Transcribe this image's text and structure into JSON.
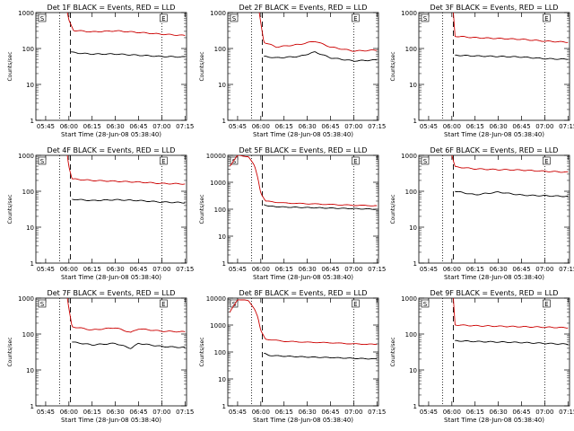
{
  "chart_data": [
    {
      "type": "line",
      "title": "Det 1F BLACK = Events, RED = LLD",
      "xlabel": "Start Time (28-Jun-08 05:38:40)",
      "ylabel": "Counts/sec",
      "xlim": [
        "05:38:40",
        "07:16:00"
      ],
      "ylim": [
        1,
        1000
      ],
      "yscale": "log",
      "x_ticks": [
        "05:45",
        "06:00",
        "06:15",
        "06:30",
        "06:45",
        "07:00",
        "07:15"
      ],
      "y_ticks": [
        "1",
        "10",
        "100",
        "1000"
      ],
      "markers": [
        "S",
        "E"
      ],
      "dotted_lines_at": [
        "05:54",
        "07:00"
      ],
      "dashed_line_at": "06:01",
      "series": [
        {
          "color": "#000000",
          "x": [
            "06:01",
            "06:05",
            "06:15",
            "06:30",
            "06:45",
            "07:00",
            "07:15"
          ],
          "values": [
            80,
            75,
            70,
            70,
            65,
            60,
            58
          ]
        },
        {
          "color": "#cc0000",
          "x": [
            "05:59",
            "06:00",
            "06:03",
            "06:15",
            "06:30",
            "06:45",
            "07:00",
            "07:15"
          ],
          "values": [
            1000,
            600,
            320,
            290,
            310,
            280,
            250,
            230
          ]
        }
      ]
    },
    {
      "type": "line",
      "title": "Det 2F BLACK = Events, RED = LLD",
      "xlabel": "Start Time (28-Jun-08 05:38:40)",
      "ylabel": "Counts/sec",
      "xlim": [
        "05:38:40",
        "07:16:00"
      ],
      "ylim": [
        1,
        1000
      ],
      "yscale": "log",
      "x_ticks": [
        "05:45",
        "06:00",
        "06:15",
        "06:30",
        "06:45",
        "07:00",
        "07:15"
      ],
      "y_ticks": [
        "1",
        "10",
        "100",
        "1000"
      ],
      "markers": [
        "S",
        "E"
      ],
      "dotted_lines_at": [
        "05:54",
        "07:00"
      ],
      "dashed_line_at": "06:01",
      "series": [
        {
          "color": "#000000",
          "x": [
            "06:02",
            "06:10",
            "06:25",
            "06:35",
            "06:45",
            "07:00",
            "07:15"
          ],
          "values": [
            60,
            55,
            60,
            80,
            55,
            45,
            48
          ]
        },
        {
          "color": "#cc0000",
          "x": [
            "05:59",
            "06:00",
            "06:02",
            "06:10",
            "06:25",
            "06:35",
            "06:45",
            "07:00",
            "07:15"
          ],
          "values": [
            1000,
            500,
            150,
            110,
            130,
            160,
            110,
            85,
            90
          ]
        }
      ]
    },
    {
      "type": "line",
      "title": "Det 3F BLACK = Events, RED = LLD",
      "xlabel": "Start Time (28-Jun-08 05:38:40)",
      "ylabel": "Counts/sec",
      "xlim": [
        "05:38:40",
        "07:16:00"
      ],
      "ylim": [
        1,
        1000
      ],
      "yscale": "log",
      "x_ticks": [
        "05:45",
        "06:00",
        "06:15",
        "06:30",
        "06:45",
        "07:00",
        "07:15"
      ],
      "y_ticks": [
        "1",
        "10",
        "100",
        "1000"
      ],
      "markers": [
        "S",
        "E"
      ],
      "dotted_lines_at": [
        "05:54",
        "07:00"
      ],
      "dashed_line_at": "06:01",
      "series": [
        {
          "color": "#000000",
          "x": [
            "06:02",
            "06:15",
            "06:30",
            "06:45",
            "07:00",
            "07:15"
          ],
          "values": [
            65,
            62,
            60,
            58,
            52,
            50
          ]
        },
        {
          "color": "#cc0000",
          "x": [
            "06:01",
            "06:02",
            "06:15",
            "06:30",
            "06:45",
            "07:00",
            "07:15"
          ],
          "values": [
            1000,
            220,
            200,
            190,
            180,
            160,
            150
          ]
        }
      ]
    },
    {
      "type": "line",
      "title": "Det 4F BLACK = Events, RED = LLD",
      "xlabel": "Start Time (28-Jun-08 05:38:40)",
      "ylabel": "Counts/sec",
      "xlim": [
        "05:38:40",
        "07:16:00"
      ],
      "ylim": [
        1,
        1000
      ],
      "yscale": "log",
      "x_ticks": [
        "05:45",
        "06:00",
        "06:15",
        "06:30",
        "06:45",
        "07:00",
        "07:15"
      ],
      "y_ticks": [
        "1",
        "10",
        "100",
        "1000"
      ],
      "markers": [
        "S",
        "E"
      ],
      "dotted_lines_at": [
        "05:54",
        "07:00"
      ],
      "dashed_line_at": "06:01",
      "series": [
        {
          "color": "#000000",
          "x": [
            "06:02",
            "06:15",
            "06:30",
            "06:45",
            "07:00",
            "07:15"
          ],
          "values": [
            60,
            55,
            58,
            55,
            50,
            48
          ]
        },
        {
          "color": "#cc0000",
          "x": [
            "05:59",
            "06:00",
            "06:02",
            "06:15",
            "06:30",
            "06:45",
            "07:00",
            "07:15"
          ],
          "values": [
            1000,
            500,
            220,
            200,
            190,
            180,
            165,
            160
          ]
        }
      ]
    },
    {
      "type": "line",
      "title": "Det 5F BLACK = Events, RED = LLD",
      "xlabel": "Start Time (28-Jun-08 05:38:40)",
      "ylabel": "Counts/sec",
      "xlim": [
        "05:38:40",
        "07:16:00"
      ],
      "ylim": [
        1,
        10000
      ],
      "yscale": "log",
      "x_ticks": [
        "05:45",
        "06:00",
        "06:15",
        "06:30",
        "06:45",
        "07:00",
        "07:15"
      ],
      "y_ticks": [
        "1",
        "10",
        "100",
        "1000",
        "10000"
      ],
      "markers": [
        "S",
        "E"
      ],
      "dotted_lines_at": [
        "05:54",
        "07:00"
      ],
      "dashed_line_at": "06:01",
      "series": [
        {
          "color": "#000000",
          "x": [
            "06:02",
            "06:05",
            "06:15",
            "06:30",
            "06:45",
            "07:00",
            "07:15"
          ],
          "values": [
            150,
            130,
            120,
            115,
            110,
            105,
            100
          ]
        },
        {
          "color": "#cc0000",
          "x": [
            "05:40",
            "05:45",
            "05:52",
            "05:56",
            "05:58",
            "06:00",
            "06:03",
            "06:15",
            "06:30",
            "06:45",
            "07:00",
            "07:15"
          ],
          "values": [
            4000,
            10000,
            9000,
            4000,
            1500,
            400,
            200,
            170,
            160,
            150,
            140,
            135
          ]
        }
      ]
    },
    {
      "type": "line",
      "title": "Det 6F BLACK = Events, RED = LLD",
      "xlabel": "Start Time (28-Jun-08 05:38:40)",
      "ylabel": "Counts/sec",
      "xlim": [
        "05:38:40",
        "07:16:00"
      ],
      "ylim": [
        1,
        1000
      ],
      "yscale": "log",
      "x_ticks": [
        "05:45",
        "06:00",
        "06:15",
        "06:30",
        "06:45",
        "07:00",
        "07:15"
      ],
      "y_ticks": [
        "1",
        "10",
        "100",
        "1000"
      ],
      "markers": [
        "S",
        "E"
      ],
      "dotted_lines_at": [
        "05:54",
        "07:00"
      ],
      "dashed_line_at": "06:01",
      "series": [
        {
          "color": "#000000",
          "x": [
            "06:02",
            "06:15",
            "06:30",
            "06:45",
            "07:00",
            "07:15"
          ],
          "values": [
            100,
            80,
            95,
            78,
            75,
            72
          ]
        },
        {
          "color": "#cc0000",
          "x": [
            "06:00",
            "06:02",
            "06:15",
            "06:30",
            "06:45",
            "07:00",
            "07:15"
          ],
          "values": [
            1000,
            480,
            420,
            400,
            390,
            360,
            340
          ]
        }
      ]
    },
    {
      "type": "line",
      "title": "Det 7F BLACK = Events, RED = LLD",
      "xlabel": "Start Time (28-Jun-08 05:38:40)",
      "ylabel": "Counts/sec",
      "xlim": [
        "05:38:40",
        "07:16:00"
      ],
      "ylim": [
        1,
        1000
      ],
      "yscale": "log",
      "x_ticks": [
        "05:45",
        "06:00",
        "06:15",
        "06:30",
        "06:45",
        "07:00",
        "07:15"
      ],
      "y_ticks": [
        "1",
        "10",
        "100",
        "1000"
      ],
      "markers": [
        "S",
        "E"
      ],
      "dotted_lines_at": [
        "05:54",
        "07:00"
      ],
      "dashed_line_at": "06:01",
      "series": [
        {
          "color": "#000000",
          "x": [
            "06:02",
            "06:15",
            "06:30",
            "06:40",
            "06:45",
            "07:00",
            "07:15"
          ],
          "values": [
            60,
            50,
            55,
            40,
            55,
            45,
            42
          ]
        },
        {
          "color": "#cc0000",
          "x": [
            "05:59",
            "06:00",
            "06:02",
            "06:15",
            "06:30",
            "06:40",
            "06:45",
            "07:00",
            "07:15"
          ],
          "values": [
            1000,
            500,
            160,
            130,
            150,
            110,
            140,
            120,
            115
          ]
        }
      ]
    },
    {
      "type": "line",
      "title": "Det 8F BLACK = Events, RED = LLD",
      "xlabel": "Start Time (28-Jun-08 05:38:40)",
      "ylabel": "Counts/sec",
      "xlim": [
        "05:38:40",
        "07:16:00"
      ],
      "ylim": [
        1,
        10000
      ],
      "yscale": "log",
      "x_ticks": [
        "05:45",
        "06:00",
        "06:15",
        "06:30",
        "06:45",
        "07:00",
        "07:15"
      ],
      "y_ticks": [
        "1",
        "10",
        "100",
        "1000",
        "10000"
      ],
      "markers": [
        "S",
        "E"
      ],
      "dotted_lines_at": [
        "05:54",
        "07:00"
      ],
      "dashed_line_at": "06:01",
      "series": [
        {
          "color": "#000000",
          "x": [
            "06:02",
            "06:05",
            "06:15",
            "06:30",
            "06:45",
            "07:00",
            "07:15"
          ],
          "values": [
            90,
            75,
            70,
            65,
            62,
            58,
            55
          ]
        },
        {
          "color": "#cc0000",
          "x": [
            "05:40",
            "05:45",
            "05:52",
            "05:56",
            "05:58",
            "06:00",
            "06:03",
            "06:15",
            "06:30",
            "06:45",
            "07:00",
            "07:15"
          ],
          "values": [
            3000,
            9000,
            8000,
            4000,
            2000,
            600,
            300,
            250,
            230,
            220,
            200,
            190
          ]
        }
      ]
    },
    {
      "type": "line",
      "title": "Det 9F BLACK = Events, RED = LLD",
      "xlabel": "Start Time (28-Jun-08 05:38:40)",
      "ylabel": "Counts/sec",
      "xlim": [
        "05:38:40",
        "07:16:00"
      ],
      "ylim": [
        1,
        1000
      ],
      "yscale": "log",
      "x_ticks": [
        "05:45",
        "06:00",
        "06:15",
        "06:30",
        "06:45",
        "07:00",
        "07:15"
      ],
      "y_ticks": [
        "1",
        "10",
        "100",
        "1000"
      ],
      "markers": [
        "S",
        "E"
      ],
      "dotted_lines_at": [
        "05:54",
        "07:00"
      ],
      "dashed_line_at": "06:01",
      "series": [
        {
          "color": "#000000",
          "x": [
            "06:02",
            "06:15",
            "06:30",
            "06:45",
            "07:00",
            "07:15"
          ],
          "values": [
            65,
            62,
            60,
            58,
            55,
            52
          ]
        },
        {
          "color": "#cc0000",
          "x": [
            "06:01",
            "06:02",
            "06:15",
            "06:30",
            "06:45",
            "07:00",
            "07:15"
          ],
          "values": [
            1000,
            180,
            170,
            165,
            160,
            155,
            150
          ]
        }
      ]
    }
  ]
}
